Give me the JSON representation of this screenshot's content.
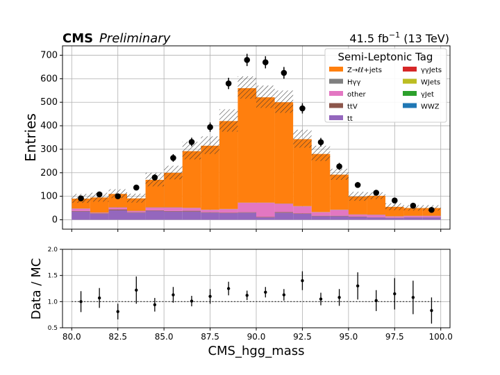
{
  "header": {
    "experiment": "CMS",
    "status": "Preliminary",
    "luminosity": "41.5 fb",
    "lumi_exponent": "−1",
    "energy": "(13 TeV)"
  },
  "chart_data": {
    "type": "histogram",
    "x_bin_edges": [
      80,
      81,
      82,
      83,
      84,
      85,
      86,
      87,
      88,
      89,
      90,
      91,
      92,
      93,
      94,
      95,
      96,
      97,
      98,
      99,
      100
    ],
    "xlabel": "CMS_hgg_mass",
    "xlim": [
      79.5,
      100.5
    ],
    "xticks": [
      "80.0",
      "82.5",
      "85.0",
      "87.5",
      "90.0",
      "92.5",
      "95.0",
      "97.5",
      "100.0"
    ],
    "grid": true,
    "main": {
      "ylabel": "Entries",
      "ylim": [
        -40,
        740
      ],
      "yticks": [
        "0",
        "100",
        "200",
        "300",
        "400",
        "500",
        "600",
        "700"
      ],
      "legend": {
        "title": "Semi-Leptonic Tag",
        "placement": "top-right",
        "entries": [
          {
            "label": "Z→ℓℓ+jets",
            "color": "#ff7f0e"
          },
          {
            "label": "γγJets",
            "color": "#d62728"
          },
          {
            "label": "Hγγ",
            "color": "#7f7f7f"
          },
          {
            "label": "WJets",
            "color": "#bcbd22"
          },
          {
            "label": "other",
            "color": "#e377c2"
          },
          {
            "label": "γJet",
            "color": "#2ca02c"
          },
          {
            "label": "ttV",
            "color": "#8c564b"
          },
          {
            "label": "WWZ",
            "color": "#1f77b4"
          },
          {
            "label": "tt",
            "color": "#9467bd"
          }
        ]
      },
      "stack_series": [
        {
          "name": "tt",
          "color": "#9467bd",
          "values": [
            35,
            25,
            40,
            30,
            38,
            35,
            35,
            30,
            28,
            30,
            10,
            30,
            25,
            15,
            15,
            12,
            10,
            8,
            10,
            10
          ]
        },
        {
          "name": "ttV",
          "color": "#8c564b",
          "values": [
            2,
            2,
            4,
            2,
            2,
            2,
            3,
            2,
            2,
            2,
            2,
            3,
            2,
            2,
            2,
            2,
            1,
            1,
            1,
            1
          ]
        },
        {
          "name": "other",
          "color": "#e377c2",
          "values": [
            10,
            3,
            8,
            5,
            12,
            15,
            12,
            10,
            15,
            40,
            60,
            35,
            30,
            15,
            25,
            8,
            10,
            5,
            5,
            5
          ]
        },
        {
          "name": "Hγγ",
          "color": "#7f7f7f",
          "values": [
            1,
            1,
            1,
            1,
            1,
            1,
            1,
            1,
            1,
            1,
            1,
            1,
            1,
            1,
            1,
            1,
            1,
            1,
            1,
            1
          ]
        },
        {
          "name": "Z→ℓℓ+jets",
          "color": "#ff7f0e",
          "values": [
            42,
            64,
            57,
            53,
            117,
            147,
            241,
            272,
            374,
            487,
            448,
            431,
            285,
            247,
            149,
            76,
            80,
            40,
            33,
            33
          ]
        }
      ],
      "uncertainty": {
        "hatch": true,
        "up": [
          20,
          20,
          20,
          20,
          30,
          30,
          40,
          40,
          50,
          50,
          50,
          50,
          40,
          35,
          25,
          20,
          15,
          15,
          12,
          12
        ],
        "down": [
          18,
          18,
          18,
          18,
          28,
          28,
          35,
          35,
          45,
          45,
          45,
          45,
          36,
          30,
          22,
          18,
          14,
          14,
          11,
          11
        ]
      },
      "data_points": {
        "x": [
          80.5,
          81.5,
          82.5,
          83.5,
          84.5,
          85.5,
          86.5,
          87.5,
          88.5,
          89.5,
          90.5,
          91.5,
          92.5,
          93.5,
          94.5,
          95.5,
          96.5,
          97.5,
          98.5,
          99.5
        ],
        "y": [
          91,
          108,
          100,
          137,
          180,
          263,
          331,
          394,
          580,
          680,
          670,
          625,
          474,
          330,
          227,
          148,
          115,
          82,
          60,
          42
        ],
        "yerr": [
          9.5,
          10.4,
          10.0,
          11.7,
          13.4,
          16.2,
          18.2,
          19.8,
          24.1,
          26.1,
          25.9,
          25.0,
          21.8,
          18.2,
          15.1,
          12.2,
          10.7,
          9.1,
          7.7,
          6.5
        ]
      }
    },
    "ratio": {
      "ylabel": "Data / MC",
      "ylim": [
        0.5,
        2.0
      ],
      "yticks": [
        "0.5",
        "1.0",
        "1.5",
        "2.0"
      ],
      "reference_line": 1.0,
      "x": [
        80.5,
        81.5,
        82.5,
        83.5,
        84.5,
        85.5,
        86.5,
        87.5,
        88.5,
        89.5,
        90.5,
        91.5,
        92.5,
        93.5,
        94.5,
        95.5,
        96.5,
        97.5,
        98.5,
        99.5
      ],
      "y": [
        1.0,
        1.07,
        0.81,
        1.22,
        0.94,
        1.13,
        1.01,
        1.1,
        1.25,
        1.12,
        1.18,
        1.13,
        1.4,
        1.05,
        1.08,
        1.3,
        1.02,
        1.15,
        1.08,
        0.83
      ],
      "yerr": [
        0.2,
        0.19,
        0.15,
        0.26,
        0.13,
        0.15,
        0.1,
        0.14,
        0.13,
        0.09,
        0.1,
        0.11,
        0.18,
        0.12,
        0.16,
        0.26,
        0.2,
        0.3,
        0.32,
        0.25
      ]
    }
  }
}
